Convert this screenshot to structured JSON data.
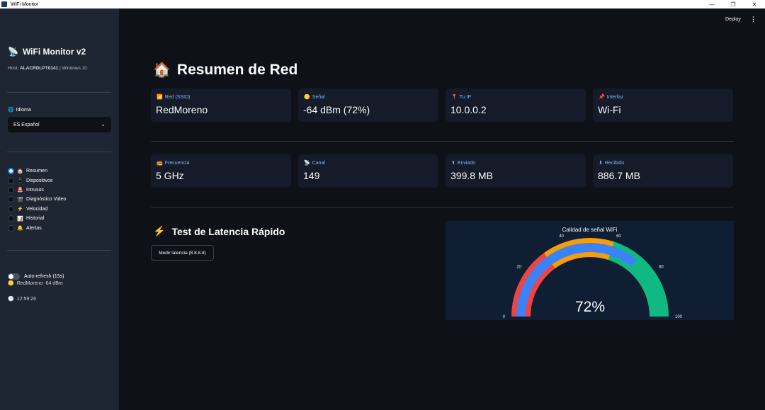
{
  "window": {
    "title": "WiFi Monitor",
    "controls": [
      "—",
      "❐",
      "✕"
    ]
  },
  "sidebar": {
    "app_title": "WiFi Monitor v2",
    "host_prefix": "Host: ",
    "host_name": "ALACRDLPT0141",
    "host_suffix": " | Windows 10",
    "language_label": "Idioma",
    "language_value": "ES Español",
    "nav": [
      {
        "emoji": "🏠",
        "label": "Resumen",
        "selected": true
      },
      {
        "emoji": "📱",
        "label": "Dispositivos",
        "selected": false
      },
      {
        "emoji": "🚨",
        "label": "Intrusos",
        "selected": false
      },
      {
        "emoji": "🎬",
        "label": "Diagnóstico Video",
        "selected": false
      },
      {
        "emoji": "⚡",
        "label": "Velocidad",
        "selected": false
      },
      {
        "emoji": "📊",
        "label": "Historial",
        "selected": false
      },
      {
        "emoji": "🔔",
        "label": "Alertas",
        "selected": false
      }
    ],
    "auto_refresh_label": "Auto-refresh (15s)",
    "signal_status": "RedMoreno -64 dBm",
    "clock": "12:59:26"
  },
  "header": {
    "deploy_label": "Deploy",
    "menu_icon": "⋮"
  },
  "main": {
    "title": "Resumen de Red",
    "metrics_row1": [
      {
        "icon": "📶",
        "label": "Red (SSID)",
        "value": "RedMoreno"
      },
      {
        "icon": "🟡",
        "label": "Señal",
        "value": "-64 dBm (72%)"
      },
      {
        "icon": "📍",
        "label": "Tu IP",
        "value": "10.0.0.2"
      },
      {
        "icon": "📌",
        "label": "Interfaz",
        "value": "Wi-Fi"
      }
    ],
    "metrics_row2": [
      {
        "icon": "📻",
        "label": "Frecuencia",
        "value": "5 GHz"
      },
      {
        "icon": "📡",
        "label": "Canal",
        "value": "149"
      },
      {
        "icon": "⬆",
        "label": "Enviado",
        "value": "399.8 MB"
      },
      {
        "icon": "⬇",
        "label": "Recibido",
        "value": "886.7 MB"
      }
    ],
    "latency": {
      "title": "Test de Latencia Rápido",
      "button_label": "Medir latencia (8.8.8.8)"
    },
    "gauge": {
      "title": "Calidad de señal WiFi",
      "value": 72,
      "value_text": "72%",
      "min": 0,
      "max": 100,
      "ticks": [
        "0",
        "20",
        "40",
        "60",
        "80",
        "100"
      ],
      "steps": [
        {
          "from": 0,
          "to": 30,
          "color": "#ef4444"
        },
        {
          "from": 30,
          "to": 60,
          "color": "#f59e0b"
        },
        {
          "from": 60,
          "to": 100,
          "color": "#10b981"
        }
      ],
      "bar_color": "#3b82f6"
    }
  }
}
